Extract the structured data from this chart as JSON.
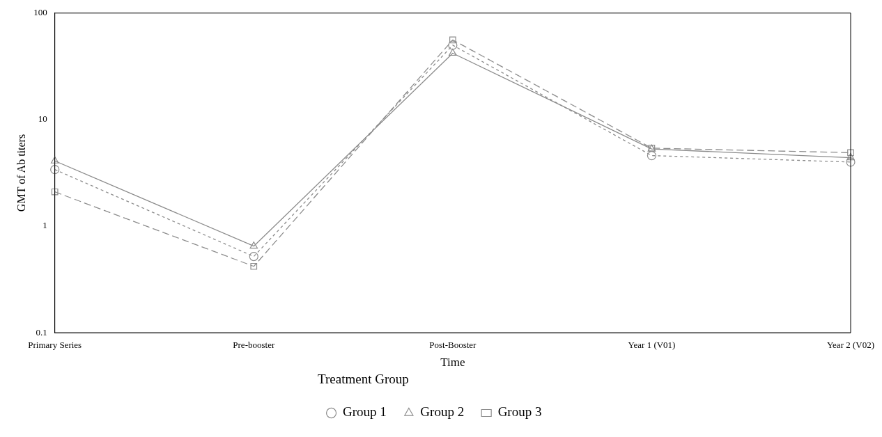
{
  "chart_data": {
    "type": "line",
    "xlabel": "Time",
    "ylabel": "GMT of Ab titers",
    "legend_title": "Treatment Group",
    "legend": "bottom",
    "grid": false,
    "log": "y",
    "categories": [
      "Primary Series",
      "Pre-booster",
      "Post-Booster",
      "Year 1 (V01)",
      "Year 2 (V02)"
    ],
    "ylim": [
      0.1,
      100
    ],
    "yticks": [
      0.1,
      1,
      10,
      100
    ],
    "series": [
      {
        "name": "Group 1",
        "color": "#8c8c8c",
        "marker": "circle",
        "line_style": "dotted",
        "values": [
          3.4,
          0.52,
          50,
          4.6,
          4.0
        ]
      },
      {
        "name": "Group 2",
        "color": "#8c8c8c",
        "marker": "triangle",
        "line_style": "solid",
        "values": [
          4.1,
          0.65,
          42,
          5.3,
          4.4
        ]
      },
      {
        "name": "Group 3",
        "color": "#8c8c8c",
        "marker": "square",
        "line_style": "dashed",
        "values": [
          2.1,
          0.42,
          56,
          5.4,
          4.9
        ]
      }
    ]
  }
}
